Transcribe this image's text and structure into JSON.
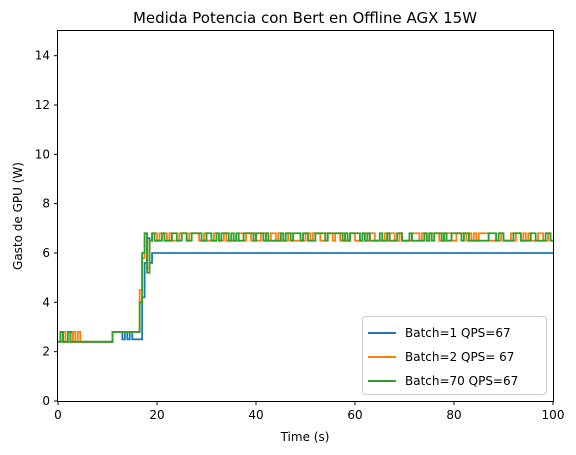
{
  "chart_data": {
    "type": "line",
    "title": "Medida Potencia con Bert en Offline AGX 15W",
    "xlabel": "Time (s)",
    "ylabel": "Gasto de GPU (W)",
    "xlim": [
      0,
      100
    ],
    "ylim": [
      0,
      15
    ],
    "xticks": [
      0,
      20,
      40,
      60,
      80,
      100
    ],
    "yticks": [
      0,
      2,
      4,
      6,
      8,
      10,
      12,
      14
    ],
    "grid": false,
    "legend_position": "lower-right",
    "series": [
      {
        "name": "Batch=1 QPS=67",
        "color": "#1f77b4",
        "x": [
          0,
          0.5,
          0.5,
          1.0,
          1.0,
          2.5,
          2.5,
          3.0,
          3.0,
          11.0,
          11.0,
          13.0,
          13.0,
          13.5,
          13.5,
          14.0,
          14.0,
          14.5,
          14.5,
          15.0,
          15.0,
          17.0,
          17.0,
          17.5,
          17.5,
          18.0,
          18.0,
          18.5,
          18.5,
          19.0,
          19.0,
          19.5,
          19.5,
          100
        ],
        "y": [
          2.4,
          2.4,
          2.8,
          2.8,
          2.4,
          2.4,
          2.8,
          2.8,
          2.4,
          2.4,
          2.8,
          2.8,
          2.5,
          2.5,
          2.8,
          2.8,
          2.5,
          2.5,
          2.8,
          2.8,
          2.5,
          2.5,
          4.2,
          4.2,
          5.6,
          5.6,
          6.6,
          6.6,
          5.6,
          5.6,
          6.0,
          6.0,
          6.0,
          6.0
        ]
      },
      {
        "name": "Batch=2 QPS= 67",
        "color": "#ff7f0e",
        "x": [
          0,
          1.0,
          1.0,
          1.5,
          1.5,
          3.0,
          3.0,
          3.5,
          3.5,
          4.0,
          4.0,
          4.5,
          4.5,
          11.0,
          11.0,
          16.5,
          16.5,
          17.0,
          17.0,
          17.5,
          17.5,
          18.0,
          18.0,
          18.5,
          18.5,
          19.0,
          19.0,
          20.0
        ],
        "y": [
          2.4,
          2.4,
          2.8,
          2.8,
          2.4,
          2.4,
          2.8,
          2.8,
          2.4,
          2.4,
          2.8,
          2.8,
          2.4,
          2.4,
          2.8,
          2.8,
          4.5,
          4.5,
          5.8,
          5.8,
          6.8,
          6.8,
          5.4,
          5.4,
          6.5,
          6.5,
          6.8,
          6.8
        ],
        "noise": {
          "x_start": 20,
          "x_end": 100,
          "low": 6.5,
          "high": 6.8,
          "step": 0.5,
          "seed": 7
        }
      },
      {
        "name": "Batch=70 QPS=67",
        "color": "#2ca02c",
        "x": [
          0,
          0.5,
          0.5,
          1.0,
          1.0,
          2.0,
          2.0,
          2.5,
          2.5,
          11.0,
          11.0,
          16.5,
          16.5,
          17.0,
          17.0,
          17.5,
          17.5,
          18.0,
          18.0,
          18.5,
          18.5,
          19.0,
          19.0,
          19.5,
          19.5,
          20.0
        ],
        "y": [
          2.4,
          2.4,
          2.8,
          2.8,
          2.4,
          2.4,
          2.8,
          2.8,
          2.4,
          2.4,
          2.8,
          2.8,
          4.0,
          4.0,
          6.0,
          6.0,
          6.8,
          6.8,
          5.2,
          5.2,
          6.5,
          6.5,
          6.8,
          6.8,
          6.5,
          6.5
        ],
        "noise": {
          "x_start": 20,
          "x_end": 100,
          "low": 6.5,
          "high": 6.8,
          "step": 0.5,
          "seed": 13
        }
      }
    ]
  }
}
